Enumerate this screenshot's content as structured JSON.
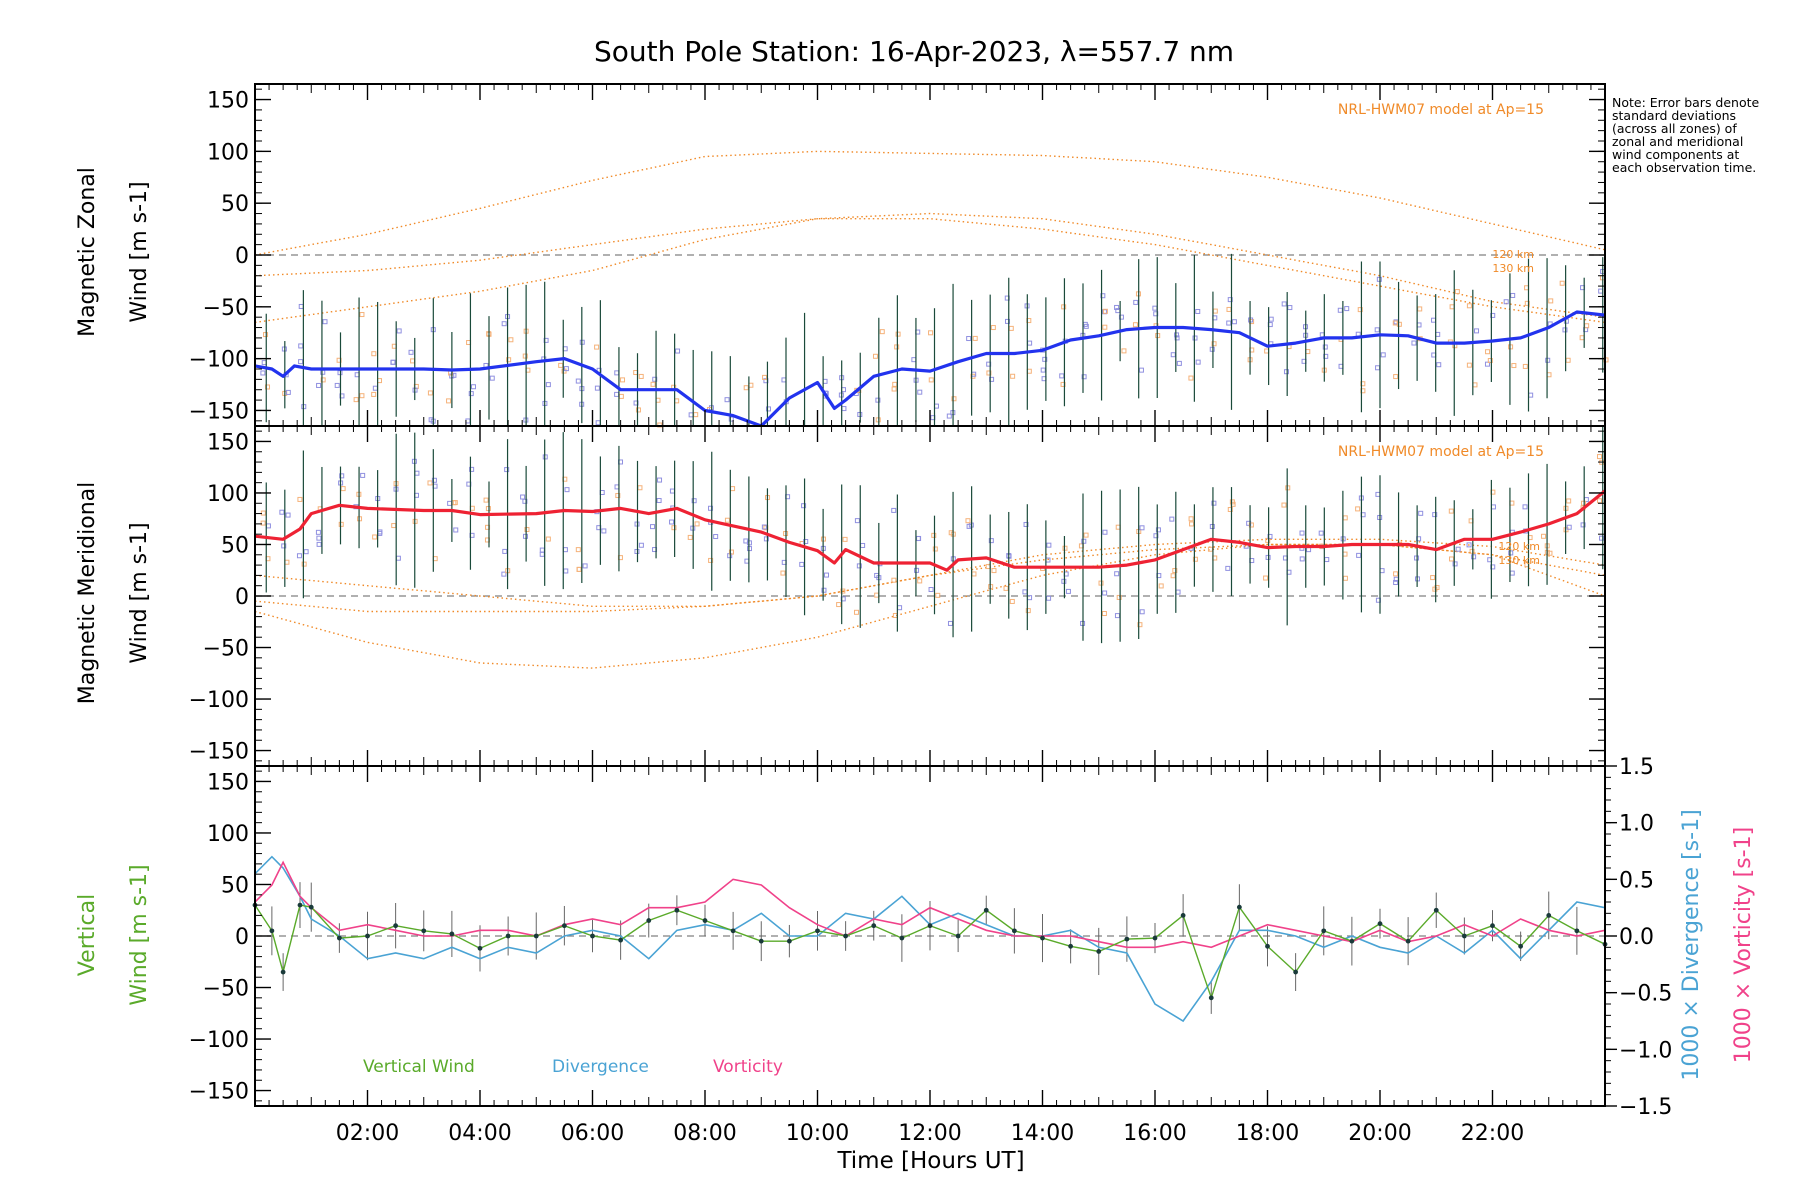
{
  "title": "South Pole Station: 16-Apr-2023, λ=557.7 nm",
  "note": "Note: Error bars denote standard deviations (across all zones) of zonal and meridional wind components at each observation time.",
  "xaxis": {
    "label": "Time [Hours UT]",
    "range_hours": [
      0,
      24
    ],
    "ticks": [
      "02:00",
      "04:00",
      "06:00",
      "08:00",
      "10:00",
      "12:00",
      "14:00",
      "16:00",
      "18:00",
      "20:00",
      "22:00"
    ],
    "tick_hours": [
      2,
      4,
      6,
      8,
      10,
      12,
      14,
      16,
      18,
      20,
      22
    ]
  },
  "colors": {
    "zonal": "#2233ee",
    "meridional": "#ee2233",
    "vertical": "#5aaa2a",
    "divergence": "#4aa3d4",
    "vorticity": "#f0428a",
    "model": "#f08a28",
    "zero": "#808080",
    "scatter": "#9090e0",
    "scatter_warm": "#f5b27a"
  },
  "chart_data": [
    {
      "type": "line",
      "panel": "zonal",
      "ylabel_line1": "Magnetic Zonal",
      "ylabel_line2": "Wind [m s-1]",
      "ylim": [
        -165,
        165
      ],
      "yticks": [
        -150,
        -100,
        -50,
        0,
        50,
        100,
        150
      ],
      "model_label": "NRL-HWM07 model at Ap=15",
      "model_altitudes": [
        "120 km",
        "130 km"
      ],
      "series": [
        {
          "name": "Magnetic Zonal Wind",
          "x": [
            0.0,
            0.3,
            0.5,
            0.7,
            1.0,
            1.5,
            2.0,
            3.0,
            3.5,
            4.0,
            5.0,
            5.5,
            6.0,
            6.5,
            7.0,
            7.5,
            8.0,
            8.5,
            9.0,
            9.5,
            10.0,
            10.3,
            10.5,
            11.0,
            11.5,
            12.0,
            12.5,
            13.0,
            13.5,
            14.0,
            14.5,
            15.0,
            15.5,
            16.0,
            16.5,
            17.0,
            17.5,
            18.0,
            18.5,
            19.0,
            19.5,
            20.0,
            20.5,
            21.0,
            21.5,
            22.0,
            22.5,
            23.0,
            23.5,
            24.0
          ],
          "y": [
            -107,
            -110,
            -117,
            -107,
            -110,
            -110,
            -110,
            -110,
            -111,
            -110,
            -103,
            -100,
            -110,
            -130,
            -130,
            -130,
            -150,
            -155,
            -165,
            -138,
            -123,
            -148,
            -140,
            -117,
            -110,
            -112,
            -103,
            -95,
            -95,
            -92,
            -82,
            -78,
            -72,
            -70,
            -70,
            -72,
            -75,
            -88,
            -85,
            -80,
            -80,
            -77,
            -78,
            -85,
            -85,
            -83,
            -80,
            -70,
            -55,
            -58
          ]
        },
        {
          "name": "HWM07 zonal 1",
          "x": [
            0,
            2,
            4,
            6,
            8,
            10,
            12,
            14,
            16,
            18,
            20,
            22,
            24
          ],
          "y": [
            0,
            20,
            45,
            72,
            95,
            100,
            98,
            96,
            90,
            75,
            55,
            30,
            5
          ],
          "style": "model"
        },
        {
          "name": "HWM07 zonal 2",
          "x": [
            0,
            2,
            4,
            6,
            8,
            10,
            12,
            14,
            16,
            18,
            20,
            22,
            24
          ],
          "y": [
            -20,
            -15,
            -5,
            10,
            25,
            35,
            35,
            25,
            10,
            -10,
            -30,
            -50,
            -65
          ],
          "style": "model"
        },
        {
          "name": "HWM07 zonal 3",
          "x": [
            0,
            2,
            4,
            6,
            8,
            10,
            12,
            14,
            16,
            18,
            20,
            22,
            24
          ],
          "y": [
            -65,
            -50,
            -35,
            -15,
            15,
            35,
            40,
            35,
            20,
            0,
            -20,
            -45,
            -60
          ],
          "style": "model"
        }
      ]
    },
    {
      "type": "line",
      "panel": "meridional",
      "ylabel_line1": "Magnetic Meridional",
      "ylabel_line2": "Wind [m s-1]",
      "ylim": [
        -165,
        165
      ],
      "yticks": [
        -150,
        -100,
        -50,
        0,
        50,
        100,
        150
      ],
      "model_label": "NRL-HWM07 model at Ap=15",
      "model_altitudes": [
        "120 km",
        "130 km"
      ],
      "series": [
        {
          "name": "Magnetic Meridional Wind",
          "x": [
            0.0,
            0.5,
            0.8,
            1.0,
            1.5,
            2.0,
            3.0,
            3.5,
            4.0,
            5.0,
            5.5,
            6.0,
            6.5,
            7.0,
            7.5,
            8.0,
            8.5,
            9.0,
            9.5,
            10.0,
            10.3,
            10.5,
            11.0,
            11.5,
            12.0,
            12.3,
            12.5,
            13.0,
            13.5,
            14.0,
            14.5,
            15.0,
            15.5,
            16.0,
            16.5,
            17.0,
            17.5,
            18.0,
            18.5,
            19.0,
            19.5,
            20.0,
            20.5,
            21.0,
            21.5,
            22.0,
            22.5,
            23.0,
            23.5,
            24.0
          ],
          "y": [
            58,
            55,
            65,
            80,
            88,
            85,
            83,
            83,
            79,
            80,
            83,
            82,
            85,
            80,
            85,
            74,
            68,
            62,
            52,
            44,
            32,
            45,
            32,
            32,
            32,
            25,
            35,
            37,
            28,
            28,
            28,
            28,
            30,
            35,
            45,
            55,
            52,
            47,
            48,
            48,
            50,
            50,
            50,
            45,
            55,
            55,
            62,
            70,
            80,
            102
          ]
        },
        {
          "name": "HWM07 meridional 1",
          "x": [
            0,
            2,
            4,
            6,
            8,
            10,
            12,
            14,
            16,
            18,
            20,
            22,
            24
          ],
          "y": [
            20,
            10,
            0,
            -10,
            -10,
            0,
            20,
            40,
            50,
            55,
            55,
            48,
            30
          ],
          "style": "model"
        },
        {
          "name": "HWM07 meridional 2",
          "x": [
            0,
            2,
            4,
            6,
            8,
            10,
            12,
            14,
            16,
            18,
            20,
            22,
            24
          ],
          "y": [
            -5,
            -15,
            -15,
            -15,
            -10,
            0,
            20,
            35,
            45,
            50,
            50,
            40,
            20
          ],
          "style": "model"
        },
        {
          "name": "HWM07 meridional 3",
          "x": [
            0,
            2,
            4,
            6,
            8,
            10,
            12,
            14,
            16,
            18,
            20,
            22,
            24
          ],
          "y": [
            -15,
            -45,
            -65,
            -70,
            -60,
            -40,
            -10,
            20,
            40,
            50,
            50,
            40,
            0
          ],
          "style": "model"
        }
      ]
    },
    {
      "type": "line",
      "panel": "vertical",
      "ylabel_line1": "Vertical",
      "ylabel_line2": "Wind [m s-1]",
      "ylim": [
        -165,
        165
      ],
      "yticks": [
        -150,
        -100,
        -50,
        0,
        50,
        100,
        150
      ],
      "y2label_divergence": "1000 × Divergence [s-1]",
      "y2label_vorticity": "1000 × Vorticity [s-1]",
      "y2lim": [
        -1.5,
        1.5
      ],
      "y2ticks": [
        "−1.5",
        "−1.0",
        "−0.5",
        "0.0",
        "0.5",
        "1.0",
        "1.5"
      ],
      "y2tick_values": [
        -1.5,
        -1.0,
        -0.5,
        0.0,
        0.5,
        1.0,
        1.5
      ],
      "legend": [
        "Vertical Wind",
        "Divergence",
        "Vorticity"
      ],
      "series": [
        {
          "name": "Vertical Wind",
          "units": "m s-1",
          "x": [
            0.0,
            0.3,
            0.5,
            0.8,
            1.0,
            1.5,
            2.0,
            2.5,
            3.0,
            3.5,
            4.0,
            4.5,
            5.0,
            5.5,
            6.0,
            6.5,
            7.0,
            7.5,
            8.0,
            8.5,
            9.0,
            9.5,
            10.0,
            10.5,
            11.0,
            11.5,
            12.0,
            12.5,
            13.0,
            13.5,
            14.0,
            14.5,
            15.0,
            15.5,
            16.0,
            16.5,
            17.0,
            17.5,
            18.0,
            18.5,
            19.0,
            19.5,
            20.0,
            20.5,
            21.0,
            21.5,
            22.0,
            22.5,
            23.0,
            23.5,
            24.0
          ],
          "y": [
            30,
            5,
            -35,
            30,
            28,
            -2,
            0,
            10,
            5,
            2,
            -12,
            0,
            0,
            10,
            0,
            -4,
            15,
            25,
            15,
            5,
            -5,
            -5,
            5,
            0,
            10,
            -2,
            10,
            0,
            25,
            5,
            -2,
            -10,
            -15,
            -3,
            -2,
            20,
            -60,
            28,
            -10,
            -35,
            5,
            -5,
            12,
            -5,
            25,
            0,
            10,
            -10,
            20,
            5,
            -8
          ]
        },
        {
          "name": "Divergence",
          "units": "1000 x s-1",
          "x": [
            0.0,
            0.3,
            0.5,
            0.8,
            1.0,
            1.5,
            2.0,
            2.5,
            3.0,
            3.5,
            4.0,
            4.5,
            5.0,
            5.5,
            6.0,
            6.5,
            7.0,
            7.5,
            8.0,
            8.5,
            9.0,
            9.5,
            10.0,
            10.5,
            11.0,
            11.5,
            12.0,
            12.5,
            13.0,
            13.5,
            14.0,
            14.5,
            15.0,
            15.5,
            16.0,
            16.5,
            17.0,
            17.5,
            18.0,
            18.5,
            19.0,
            19.5,
            20.0,
            20.5,
            21.0,
            21.5,
            22.0,
            22.5,
            23.0,
            23.5,
            24.0
          ],
          "y": [
            0.55,
            0.7,
            0.6,
            0.35,
            0.15,
            0.0,
            -0.2,
            -0.15,
            -0.2,
            -0.1,
            -0.2,
            -0.1,
            -0.15,
            0.0,
            0.05,
            0.0,
            -0.2,
            0.05,
            0.1,
            0.05,
            0.2,
            0.0,
            0.0,
            0.2,
            0.15,
            0.35,
            0.1,
            0.2,
            0.1,
            0.0,
            0.0,
            0.05,
            -0.1,
            -0.15,
            -0.6,
            -0.75,
            -0.4,
            0.05,
            0.05,
            0.0,
            -0.1,
            0.0,
            -0.1,
            -0.15,
            0.0,
            -0.15,
            0.05,
            -0.2,
            0.05,
            0.3,
            0.25
          ]
        },
        {
          "name": "Vorticity",
          "units": "1000 x s-1",
          "x": [
            0.0,
            0.3,
            0.5,
            0.8,
            1.0,
            1.5,
            2.0,
            2.5,
            3.0,
            3.5,
            4.0,
            4.5,
            5.0,
            5.5,
            6.0,
            6.5,
            7.0,
            7.5,
            8.0,
            8.5,
            9.0,
            9.5,
            10.0,
            10.5,
            11.0,
            11.5,
            12.0,
            12.5,
            13.0,
            13.5,
            14.0,
            14.5,
            15.0,
            15.5,
            16.0,
            16.5,
            17.0,
            17.5,
            18.0,
            18.5,
            19.0,
            19.5,
            20.0,
            20.5,
            21.0,
            21.5,
            22.0,
            22.5,
            23.0,
            23.5,
            24.0
          ],
          "y": [
            0.3,
            0.45,
            0.65,
            0.35,
            0.25,
            0.05,
            0.1,
            0.05,
            0.0,
            0.0,
            0.05,
            0.05,
            0.0,
            0.1,
            0.15,
            0.1,
            0.25,
            0.25,
            0.3,
            0.5,
            0.45,
            0.25,
            0.1,
            0.0,
            0.15,
            0.1,
            0.25,
            0.15,
            0.05,
            0.0,
            0.0,
            0.0,
            -0.05,
            -0.1,
            -0.1,
            -0.05,
            -0.1,
            0.0,
            0.1,
            0.05,
            0.0,
            -0.05,
            0.05,
            -0.05,
            0.0,
            0.1,
            0.0,
            0.15,
            0.05,
            0.0,
            0.05
          ]
        }
      ]
    }
  ]
}
